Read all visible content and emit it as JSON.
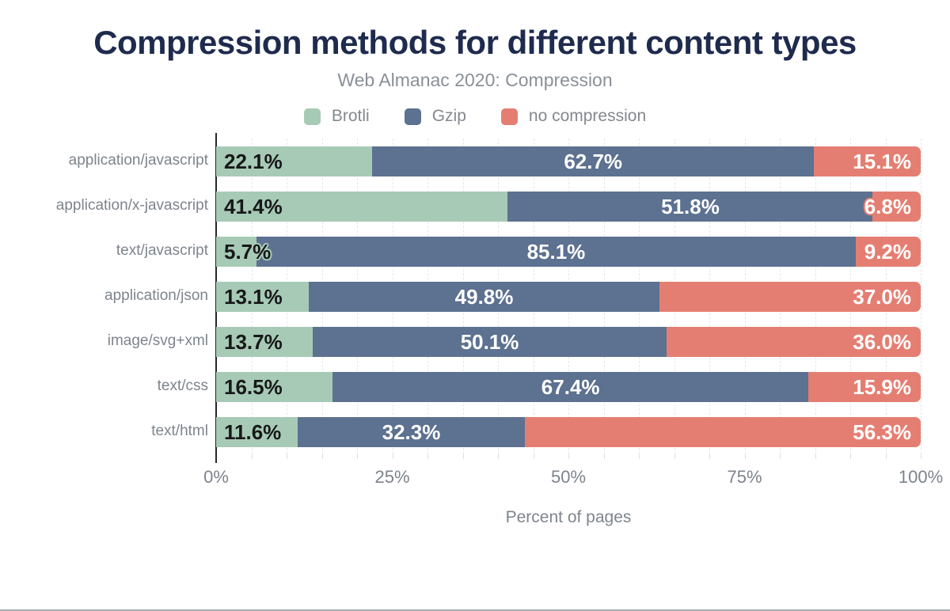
{
  "title": "Compression methods for different content types",
  "subtitle": "Web Almanac 2020: Compression",
  "legend": [
    {
      "label": "Brotli",
      "color": "#a7cab6"
    },
    {
      "label": "Gzip",
      "color": "#5d7190"
    },
    {
      "label": "no compression",
      "color": "#e57e72"
    }
  ],
  "axis": {
    "x_title": "Percent of pages",
    "x_ticks": [
      "0%",
      "25%",
      "50%",
      "75%",
      "100%"
    ],
    "x_tick_positions": [
      0,
      25,
      50,
      75,
      100
    ],
    "grid_interval": 5
  },
  "chart_data": {
    "type": "bar",
    "orientation": "horizontal",
    "stacked": true,
    "title": "Compression methods for different content types",
    "subtitle": "Web Almanac 2020: Compression",
    "xlabel": "Percent of pages",
    "ylabel": "",
    "xlim": [
      0,
      100
    ],
    "grid": true,
    "legend_position": "top",
    "categories": [
      "application/javascript",
      "application/x-javascript",
      "text/javascript",
      "application/json",
      "image/svg+xml",
      "text/css",
      "text/html"
    ],
    "series": [
      {
        "name": "Brotli",
        "color": "#a7cab6",
        "values": [
          22.1,
          41.4,
          5.7,
          13.1,
          13.7,
          16.5,
          11.6
        ],
        "labels": [
          "22.1%",
          "41.4%",
          "5.7%",
          "13.1%",
          "13.7%",
          "16.5%",
          "11.6%"
        ]
      },
      {
        "name": "Gzip",
        "color": "#5d7190",
        "values": [
          62.7,
          51.8,
          85.1,
          49.8,
          50.1,
          67.4,
          32.3
        ],
        "labels": [
          "62.7%",
          "51.8%",
          "85.1%",
          "49.8%",
          "50.1%",
          "67.4%",
          "32.3%"
        ]
      },
      {
        "name": "no compression",
        "color": "#e57e72",
        "values": [
          15.1,
          6.8,
          9.2,
          37.0,
          36.0,
          15.9,
          56.3
        ],
        "labels": [
          "15.1%",
          "6.8%",
          "9.2%",
          "37.0%",
          "36.0%",
          "15.9%",
          "56.3%"
        ]
      }
    ],
    "value_suffix": "%"
  },
  "colors": {
    "title": "#1f2b4d",
    "subtitle": "#8a9097",
    "axis_text": "#7d838b",
    "axis_line": "#25282b",
    "gridline": "#e4e7ea"
  }
}
